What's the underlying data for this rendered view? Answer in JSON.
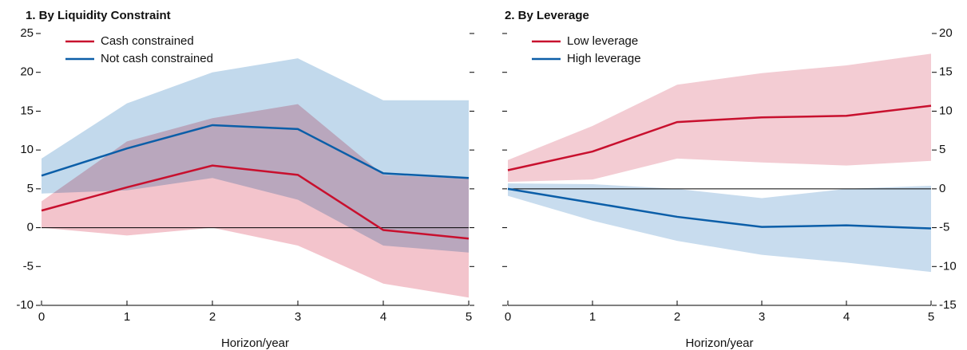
{
  "chart_data": [
    {
      "type": "line",
      "title": "1. By Liquidity Constraint",
      "xlabel": "Horizon/year",
      "x": [
        0,
        1,
        2,
        3,
        4,
        5
      ],
      "xlim": [
        0,
        5
      ],
      "xticks": [
        0,
        1,
        2,
        3,
        4,
        5
      ],
      "ylim": [
        -10,
        25
      ],
      "yticks": [
        -10,
        -5,
        0,
        5,
        10,
        15,
        20,
        25
      ],
      "ytick_side": "left",
      "hline": 0,
      "series": [
        {
          "name": "Cash constrained",
          "color": "#c8102e",
          "band_color": "#f3c4cc",
          "values": [
            2.2,
            5.2,
            8.0,
            6.8,
            -0.3,
            -1.4
          ],
          "upper": [
            3.4,
            11.1,
            14.1,
            15.9,
            6.8,
            6.3
          ],
          "lower": [
            0,
            -1.0,
            0,
            -2.3,
            -7.2,
            -9.0
          ]
        },
        {
          "name": "Not cash constrained",
          "color": "#0b5ea8",
          "band_color": "#c2d9ec",
          "values": [
            6.7,
            10.2,
            13.2,
            12.7,
            7.0,
            6.4
          ],
          "upper": [
            8.9,
            16.0,
            20.0,
            21.8,
            16.4,
            16.4
          ],
          "lower": [
            4.4,
            4.8,
            6.4,
            3.6,
            -2.3,
            -3.2
          ]
        }
      ]
    },
    {
      "type": "line",
      "title": "2. By Leverage",
      "xlabel": "Horizon/year",
      "x": [
        0,
        1,
        2,
        3,
        4,
        5
      ],
      "xlim": [
        0,
        5
      ],
      "xticks": [
        0,
        1,
        2,
        3,
        4,
        5
      ],
      "ylim": [
        -15,
        20
      ],
      "yticks": [
        -15,
        -10,
        -5,
        0,
        5,
        10,
        15,
        20
      ],
      "ytick_side": "right",
      "hline": 0,
      "series": [
        {
          "name": "Low leverage",
          "color": "#c8102e",
          "band_color": "#f3ccd3",
          "values": [
            2.4,
            4.8,
            8.6,
            9.2,
            9.4,
            10.7
          ],
          "upper": [
            3.7,
            8.1,
            13.4,
            14.9,
            15.9,
            17.4
          ],
          "lower": [
            0.9,
            1.2,
            3.9,
            3.4,
            3.0,
            3.6
          ]
        },
        {
          "name": "High leverage",
          "color": "#0b5ea8",
          "band_color": "#c8dcee",
          "values": [
            0,
            -1.8,
            -3.6,
            -4.9,
            -4.7,
            -5.1
          ],
          "upper": [
            0.7,
            0.6,
            0,
            -1.2,
            0,
            0.4
          ],
          "lower": [
            -0.9,
            -4.1,
            -6.7,
            -8.5,
            -9.5,
            -10.7
          ]
        }
      ]
    }
  ]
}
